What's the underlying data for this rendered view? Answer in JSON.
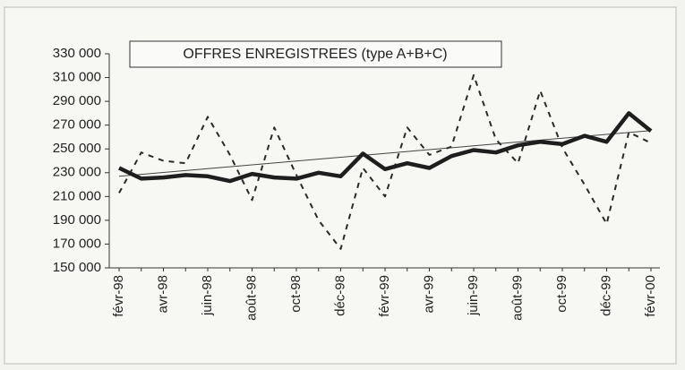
{
  "chart_data": {
    "type": "line",
    "title": "OFFRES ENREGISTREES (type A+B+C)",
    "categories": [
      "févr-98",
      null,
      "avr-98",
      null,
      "juin-98",
      null,
      "août-98",
      null,
      "oct-98",
      null,
      "déc-98",
      null,
      "févr-99",
      null,
      "avr-99",
      null,
      "juin-99",
      null,
      "août-99",
      null,
      "oct-99",
      null,
      "déc-99",
      null,
      "févr-00"
    ],
    "series": [
      {
        "color": "#2a2a2a",
        "style": "dashed",
        "values": [
          213000,
          247000,
          240000,
          238000,
          277000,
          245000,
          207000,
          268000,
          228000,
          190000,
          166000,
          234000,
          210000,
          268000,
          245000,
          252000,
          312000,
          258000,
          238000,
          299000,
          251000,
          220000,
          187000,
          264000,
          255000
        ]
      },
      {
        "color": "#1e1e1e",
        "style": "thick",
        "values": [
          234000,
          225000,
          226000,
          228000,
          227000,
          223000,
          229000,
          226000,
          225000,
          230000,
          227000,
          246000,
          233000,
          238000,
          234000,
          244000,
          249000,
          247000,
          253000,
          256000,
          254000,
          261000,
          256000,
          280000,
          265000
        ]
      },
      {
        "color": "#444444",
        "style": "thin",
        "values": [
          227000,
          228600,
          230200,
          231800,
          233400,
          235000,
          236600,
          238200,
          239800,
          241400,
          243000,
          244600,
          246200,
          247800,
          249400,
          251000,
          252600,
          254200,
          255800,
          257400,
          259000,
          260600,
          262200,
          263800,
          265400
        ]
      }
    ],
    "ylim": [
      150000,
      330000
    ],
    "yticks": [
      {
        "value": 150000,
        "label": "150 000"
      },
      {
        "value": 170000,
        "label": "170 000"
      },
      {
        "value": 190000,
        "label": "190 000"
      },
      {
        "value": 210000,
        "label": "210 000"
      },
      {
        "value": 230000,
        "label": "230 000"
      },
      {
        "value": 250000,
        "label": "250 000"
      },
      {
        "value": 270000,
        "label": "270 000"
      },
      {
        "value": 290000,
        "label": "290 000"
      },
      {
        "value": 310000,
        "label": "310 000"
      },
      {
        "value": 330000,
        "label": "330 000"
      }
    ],
    "grid": false
  }
}
